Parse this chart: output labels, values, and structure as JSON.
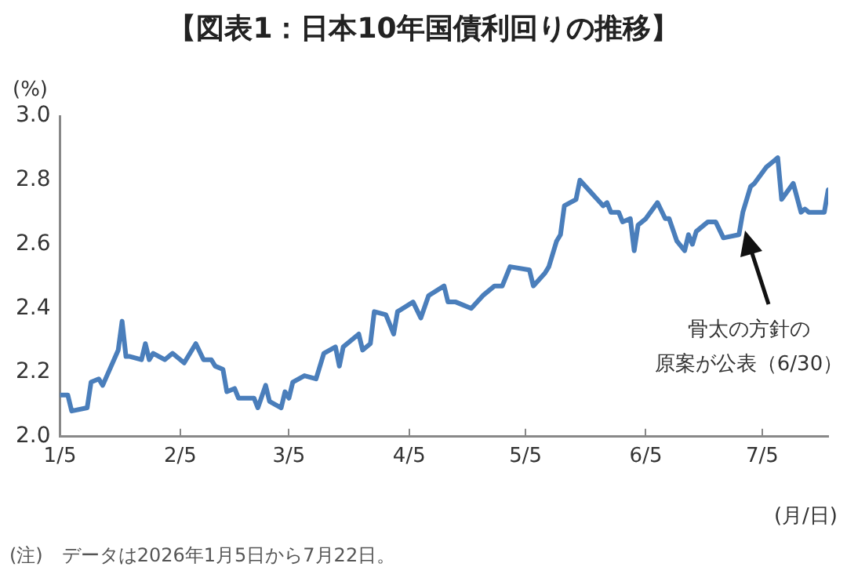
{
  "chart_data": {
    "type": "line",
    "title": "【図表1：日本10年国債利回りの推移】",
    "ylabel": "(%)",
    "xlabel": "(月/日)",
    "x": [
      "2026-01-05",
      "2026-01-07",
      "2026-01-08",
      "2026-01-12",
      "2026-01-13",
      "2026-01-15",
      "2026-01-16",
      "2026-01-20",
      "2026-01-21",
      "2026-01-22",
      "2026-01-23",
      "2026-01-26",
      "2026-01-27",
      "2026-01-28",
      "2026-01-29",
      "2026-02-01",
      "2026-02-03",
      "2026-02-06",
      "2026-02-09",
      "2026-02-11",
      "2026-02-13",
      "2026-02-14",
      "2026-02-16",
      "2026-02-17",
      "2026-02-19",
      "2026-02-20",
      "2026-02-24",
      "2026-02-25",
      "2026-02-27",
      "2026-02-28",
      "2026-03-03",
      "2026-03-04",
      "2026-03-05",
      "2026-03-06",
      "2026-03-09",
      "2026-03-12",
      "2026-03-14",
      "2026-03-17",
      "2026-03-18",
      "2026-03-19",
      "2026-03-23",
      "2026-03-24",
      "2026-03-26",
      "2026-03-27",
      "2026-03-30",
      "2026-04-01",
      "2026-04-02",
      "2026-04-06",
      "2026-04-08",
      "2026-04-10",
      "2026-04-14",
      "2026-04-15",
      "2026-04-16",
      "2026-04-17",
      "2026-04-21",
      "2026-04-24",
      "2026-04-27",
      "2026-04-29",
      "2026-05-01",
      "2026-05-06",
      "2026-05-07",
      "2026-05-10",
      "2026-05-11",
      "2026-05-13",
      "2026-05-14",
      "2026-05-15",
      "2026-05-18",
      "2026-05-19",
      "2026-05-22",
      "2026-05-25",
      "2026-05-26",
      "2026-05-27",
      "2026-05-29",
      "2026-05-30",
      "2026-06-01",
      "2026-06-02",
      "2026-06-03",
      "2026-06-05",
      "2026-06-08",
      "2026-06-10",
      "2026-06-11",
      "2026-06-13",
      "2026-06-15",
      "2026-06-16",
      "2026-06-17",
      "2026-06-18",
      "2026-06-21",
      "2026-06-23",
      "2026-06-25",
      "2026-06-29",
      "2026-06-30",
      "2026-07-02",
      "2026-07-03",
      "2026-07-06",
      "2026-07-08",
      "2026-07-09",
      "2026-07-10",
      "2026-07-13",
      "2026-07-15",
      "2026-07-16",
      "2026-07-17",
      "2026-07-21",
      "2026-07-22"
    ],
    "series": [
      {
        "color": "#4a7ebb",
        "values": [
          2.13,
          2.13,
          2.08,
          2.09,
          2.17,
          2.18,
          2.16,
          2.27,
          2.36,
          2.25,
          2.25,
          2.24,
          2.29,
          2.24,
          2.26,
          2.24,
          2.26,
          2.23,
          2.29,
          2.24,
          2.24,
          2.22,
          2.21,
          2.14,
          2.15,
          2.12,
          2.12,
          2.09,
          2.16,
          2.11,
          2.09,
          2.14,
          2.12,
          2.17,
          2.19,
          2.18,
          2.26,
          2.28,
          2.22,
          2.28,
          2.32,
          2.27,
          2.29,
          2.39,
          2.38,
          2.32,
          2.39,
          2.42,
          2.37,
          2.44,
          2.47,
          2.42,
          2.42,
          2.42,
          2.4,
          2.44,
          2.47,
          2.47,
          2.53,
          2.52,
          2.47,
          2.51,
          2.53,
          2.61,
          2.63,
          2.72,
          2.74,
          2.8,
          2.76,
          2.72,
          2.73,
          2.7,
          2.7,
          2.67,
          2.68,
          2.58,
          2.66,
          2.68,
          2.73,
          2.68,
          2.68,
          2.61,
          2.58,
          2.63,
          2.6,
          2.64,
          2.67,
          2.67,
          2.62,
          2.63,
          2.7,
          2.78,
          2.79,
          2.84,
          2.86,
          2.87,
          2.74,
          2.79,
          2.7,
          2.71,
          2.7,
          2.7,
          2.77
        ]
      }
    ],
    "xlim": [
      "2026-01-05",
      "2026-07-22"
    ],
    "xticks": [
      {
        "value": "2026-01-05",
        "label": "1/5"
      },
      {
        "value": "2026-02-05",
        "label": "2/5"
      },
      {
        "value": "2026-03-05",
        "label": "3/5"
      },
      {
        "value": "2026-04-05",
        "label": "4/5"
      },
      {
        "value": "2026-05-05",
        "label": "5/5"
      },
      {
        "value": "2026-06-05",
        "label": "6/5"
      },
      {
        "value": "2026-07-05",
        "label": "7/5"
      }
    ],
    "ylim": [
      2.0,
      3.0
    ],
    "yticks": [
      {
        "value": 2.0,
        "label": "2.0"
      },
      {
        "value": 2.2,
        "label": "2.2"
      },
      {
        "value": 2.4,
        "label": "2.4"
      },
      {
        "value": 2.6,
        "label": "2.6"
      },
      {
        "value": 2.8,
        "label": "2.8"
      },
      {
        "value": 3.0,
        "label": "3.0"
      }
    ],
    "grid": false,
    "legend": false,
    "marker": "none",
    "line_style": "solid",
    "annotations": [
      "骨太の方針の",
      "原案が公表（6/30）",
      "(注)　データは2026年1月5日から7月22日。"
    ]
  }
}
